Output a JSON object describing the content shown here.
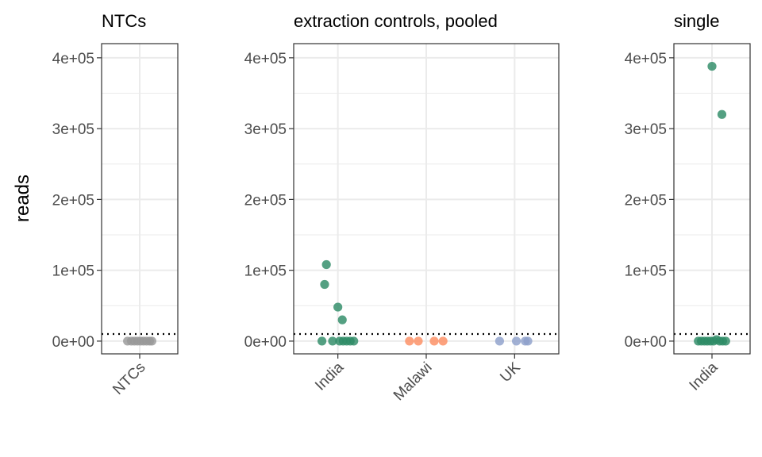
{
  "chart_data": {
    "type": "scatter",
    "ylabel": "reads",
    "ylim": [
      -18000,
      420000
    ],
    "yticks": [
      0,
      100000,
      200000,
      300000,
      400000
    ],
    "ytick_labels": [
      "0e+00",
      "1e+05",
      "2e+05",
      "3e+05",
      "4e+05"
    ],
    "threshold": 10000,
    "colors": {
      "NTCs": "#999999",
      "India": "#2e8b66",
      "Malawi": "#fc8d62",
      "UK": "#8da0cb"
    },
    "facets": [
      {
        "title": "NTCs",
        "categories": [
          "NTCs"
        ],
        "points": [
          {
            "x": "NTCs",
            "jitter": -0.16,
            "y": 0
          },
          {
            "x": "NTCs",
            "jitter": -0.11,
            "y": 0
          },
          {
            "x": "NTCs",
            "jitter": -0.07,
            "y": 0
          },
          {
            "x": "NTCs",
            "jitter": -0.03,
            "y": 0
          },
          {
            "x": "NTCs",
            "jitter": 0.01,
            "y": 0
          },
          {
            "x": "NTCs",
            "jitter": 0.05,
            "y": 0
          },
          {
            "x": "NTCs",
            "jitter": 0.09,
            "y": 0
          },
          {
            "x": "NTCs",
            "jitter": 0.13,
            "y": 0
          },
          {
            "x": "NTCs",
            "jitter": 0.16,
            "y": 0
          }
        ]
      },
      {
        "title": "extraction controls, pooled",
        "categories": [
          "India",
          "Malawi",
          "UK"
        ],
        "points": [
          {
            "x": "India",
            "jitter": -0.13,
            "y": 108000
          },
          {
            "x": "India",
            "jitter": -0.15,
            "y": 80000
          },
          {
            "x": "India",
            "jitter": 0.0,
            "y": 48000
          },
          {
            "x": "India",
            "jitter": 0.05,
            "y": 30000
          },
          {
            "x": "India",
            "jitter": -0.18,
            "y": 0
          },
          {
            "x": "India",
            "jitter": -0.06,
            "y": 0
          },
          {
            "x": "India",
            "jitter": 0.02,
            "y": 0
          },
          {
            "x": "India",
            "jitter": 0.06,
            "y": 0
          },
          {
            "x": "India",
            "jitter": 0.1,
            "y": 0
          },
          {
            "x": "India",
            "jitter": 0.14,
            "y": 0
          },
          {
            "x": "India",
            "jitter": 0.18,
            "y": 0
          },
          {
            "x": "Malawi",
            "jitter": -0.19,
            "y": 0
          },
          {
            "x": "Malawi",
            "jitter": -0.09,
            "y": 0
          },
          {
            "x": "Malawi",
            "jitter": 0.09,
            "y": 0
          },
          {
            "x": "Malawi",
            "jitter": 0.19,
            "y": 0
          },
          {
            "x": "UK",
            "jitter": -0.17,
            "y": 0
          },
          {
            "x": "UK",
            "jitter": 0.02,
            "y": 0
          },
          {
            "x": "UK",
            "jitter": 0.12,
            "y": 0
          },
          {
            "x": "UK",
            "jitter": 0.15,
            "y": 0
          }
        ]
      },
      {
        "title": "single",
        "categories": [
          "India"
        ],
        "points": [
          {
            "x": "India",
            "jitter": 0.0,
            "y": 388000
          },
          {
            "x": "India",
            "jitter": 0.13,
            "y": 320000
          },
          {
            "x": "India",
            "jitter": -0.18,
            "y": 0
          },
          {
            "x": "India",
            "jitter": -0.14,
            "y": 0
          },
          {
            "x": "India",
            "jitter": -0.1,
            "y": 0
          },
          {
            "x": "India",
            "jitter": -0.06,
            "y": 0
          },
          {
            "x": "India",
            "jitter": -0.02,
            "y": 0
          },
          {
            "x": "India",
            "jitter": 0.02,
            "y": 0
          },
          {
            "x": "India",
            "jitter": 0.06,
            "y": 2000
          },
          {
            "x": "India",
            "jitter": 0.1,
            "y": 0
          },
          {
            "x": "India",
            "jitter": 0.14,
            "y": 0
          },
          {
            "x": "India",
            "jitter": 0.18,
            "y": 0
          }
        ]
      }
    ]
  }
}
